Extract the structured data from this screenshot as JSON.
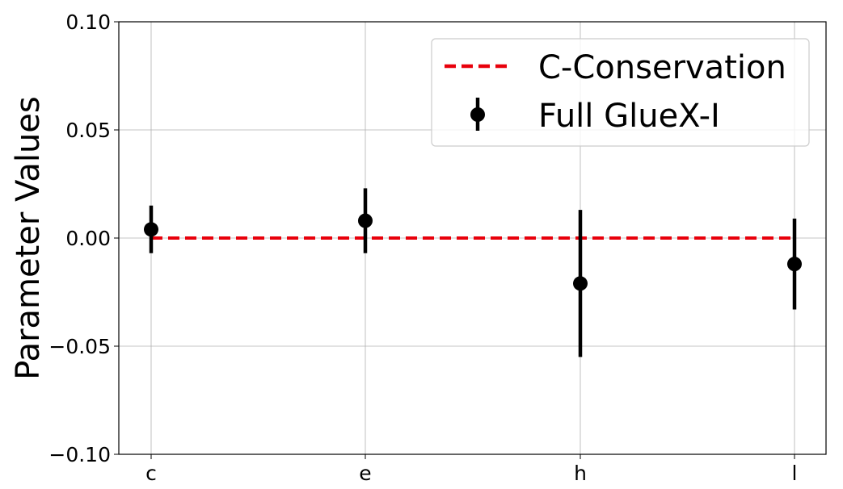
{
  "chart_data": {
    "type": "scatter",
    "title": "",
    "xlabel": "",
    "ylabel": "Parameter Values",
    "categories": [
      "c",
      "e",
      "h",
      "l"
    ],
    "ylim": [
      -0.1,
      0.1
    ],
    "yticks": [
      -0.1,
      -0.05,
      0.0,
      0.05,
      0.1
    ],
    "ytick_labels": [
      "−0.10",
      "−0.05",
      "0.00",
      "0.05",
      "0.10"
    ],
    "grid": true,
    "legend_position": "top-right",
    "reference_line": {
      "name": "C-Conservation",
      "value": 0.0,
      "style": "dashed",
      "color": "#e8000b"
    },
    "series": [
      {
        "name": "Full GlueX-I",
        "color": "#000000",
        "values": [
          0.004,
          0.008,
          -0.021,
          -0.012
        ],
        "errors": [
          0.011,
          0.015,
          0.034,
          0.021
        ]
      }
    ]
  }
}
